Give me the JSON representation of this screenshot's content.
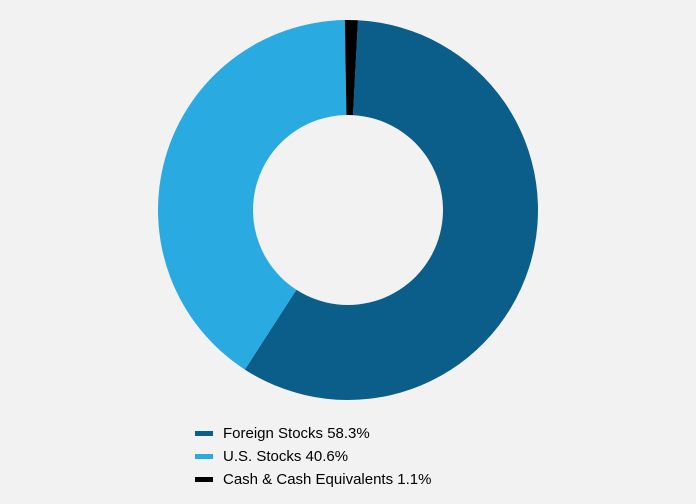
{
  "chart": {
    "type": "donut",
    "background_color": "#f2f2f2",
    "size": 380,
    "outer_radius": 190,
    "inner_radius": 95,
    "start_angle_deg": 3,
    "slices": [
      {
        "label": "Foreign Stocks",
        "value": 58.3,
        "color": "#0b5d8a",
        "legend_text": "Foreign Stocks 58.3%"
      },
      {
        "label": "U.S. Stocks",
        "value": 40.6,
        "color": "#29abe2",
        "legend_text": "U.S. Stocks 40.6%"
      },
      {
        "label": "Cash & Cash Equivalents",
        "value": 1.1,
        "color": "#000000",
        "legend_text": "Cash & Cash Equivalents 1.1%"
      }
    ],
    "legend": {
      "font_size": 15,
      "swatch_width": 18,
      "swatch_height": 5,
      "text_color": "#000000"
    }
  }
}
